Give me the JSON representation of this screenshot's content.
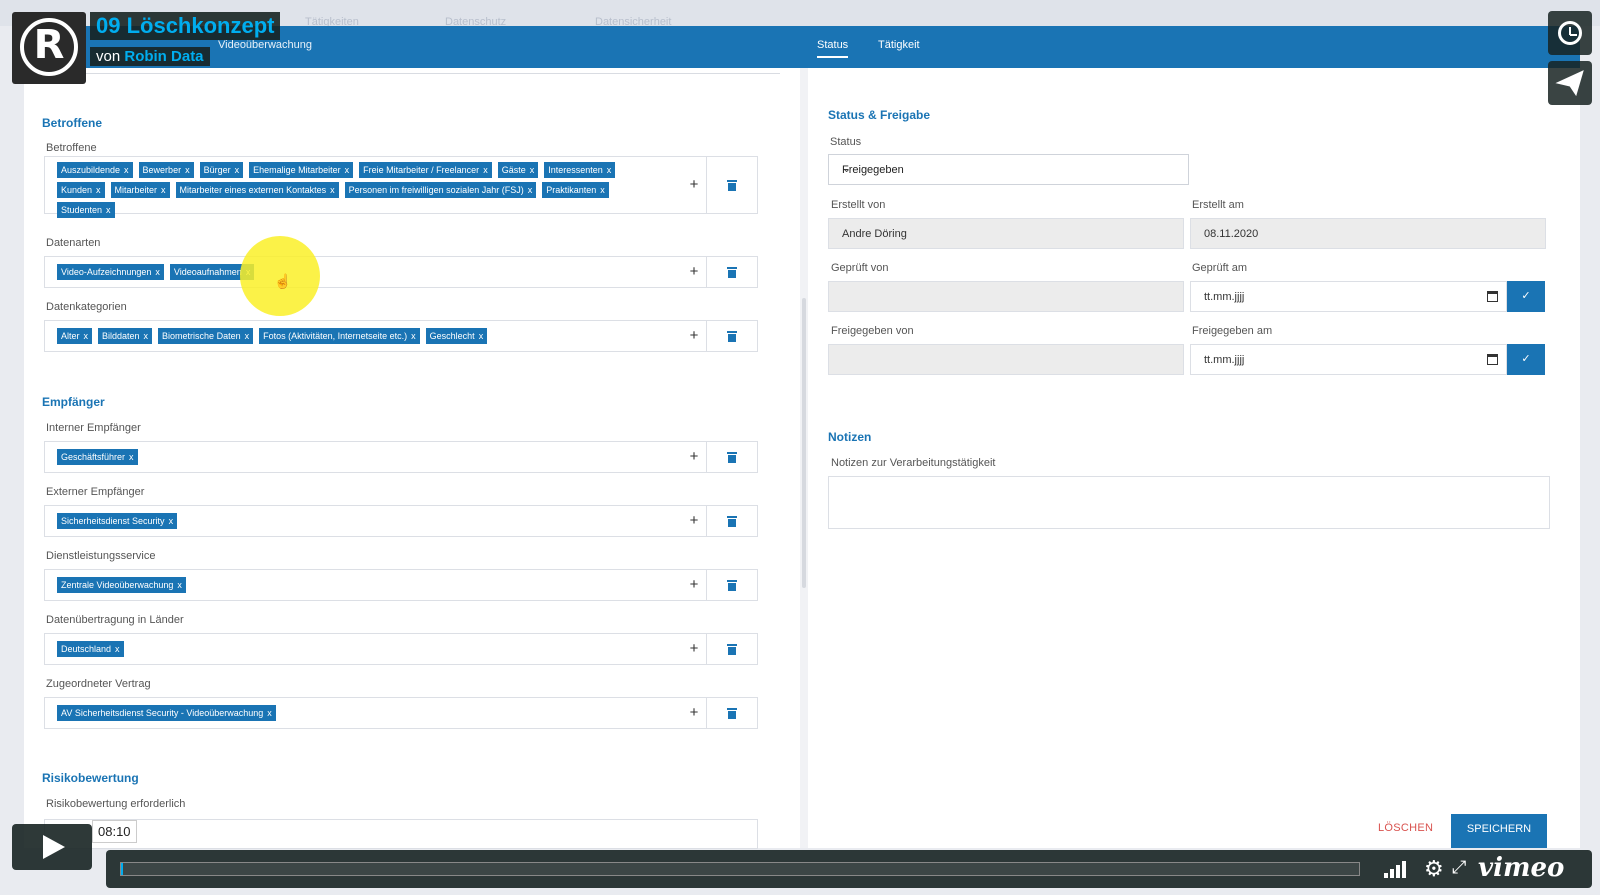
{
  "overlay": {
    "title": "09 Löschkonzept",
    "by_prefix": "von",
    "by_name": "Robin Data",
    "time": "08:10",
    "brand": "vimeo"
  },
  "top_nav_ghost": [
    "Tätigkeiten",
    "Datenschutz",
    "Datensicherheit"
  ],
  "header": {
    "breadcrumb": "Videoüberwachung",
    "tabs": [
      {
        "label": "Status",
        "active": true
      },
      {
        "label": "Tätigkeit",
        "active": false
      }
    ]
  },
  "left": {
    "betroffene": {
      "section": "Betroffene",
      "groups": [
        {
          "label": "Betroffene",
          "tags": [
            "Auszubildende",
            "Bewerber",
            "Bürger",
            "Ehemalige Mitarbeiter",
            "Freie Mitarbeiter / Freelancer",
            "Gäste",
            "Interessenten",
            "Kunden",
            "Mitarbeiter",
            "Mitarbeiter eines externen Kontaktes",
            "Personen im freiwilligen sozialen Jahr (FSJ)",
            "Praktikanten",
            "Studenten"
          ]
        },
        {
          "label": "Datenarten",
          "tags": [
            "Video-Aufzeichnungen",
            "Videoaufnahmen"
          ]
        },
        {
          "label": "Datenkategorien",
          "tags": [
            "Alter",
            "Bilddaten",
            "Biometrische Daten",
            "Fotos (Aktivitäten, Internetseite etc.)",
            "Geschlecht"
          ]
        }
      ]
    },
    "empfaenger": {
      "section": "Empfänger",
      "groups": [
        {
          "label": "Interner Empfänger",
          "tags": [
            "Geschäftsführer"
          ]
        },
        {
          "label": "Externer Empfänger",
          "tags": [
            "Sicherheitsdienst Security"
          ]
        },
        {
          "label": "Dienstleistungsservice",
          "tags": [
            "Zentrale Videoüberwachung"
          ]
        },
        {
          "label": "Datenübertragung in Länder",
          "tags": [
            "Deutschland"
          ]
        },
        {
          "label": "Zugeordneter Vertrag",
          "tags": [
            "AV Sicherheitsdienst Security - Videoüberwachung"
          ]
        }
      ]
    },
    "risiko": {
      "section": "Risikobewertung",
      "label": "Risikobewertung erforderlich"
    },
    "tag_remove": "x",
    "plus": "+"
  },
  "right": {
    "status_section": "Status & Freigabe",
    "status_label": "Status",
    "status_value": "Freigegeben",
    "erstellt_von_label": "Erstellt von",
    "erstellt_von_value": "Andre Döring",
    "erstellt_am_label": "Erstellt am",
    "erstellt_am_value": "08.11.2020",
    "geprueft_von_label": "Geprüft von",
    "geprueft_am_label": "Geprüft am",
    "geprueft_am_value": "tt.mm.jjjj",
    "freigegeben_von_label": "Freigegeben von",
    "freigegeben_am_label": "Freigegeben am",
    "freigegeben_am_value": "tt.mm.jjjj",
    "notizen_section": "Notizen",
    "notizen_label": "Notizen zur Verarbeitungstätigkeit",
    "delete_label": "LÖSCHEN",
    "save_label": "SPEICHERN",
    "check": "✓"
  },
  "colors": {
    "primary": "#1a74b4",
    "overlay_accent": "#00adef",
    "danger": "#d9534f",
    "highlight": "#faf028"
  },
  "icons": [
    "logo-icon",
    "clock-icon",
    "send-icon",
    "trash-icon",
    "plus-icon",
    "calendar-icon",
    "chevron-down-icon",
    "cursor-icon",
    "play-icon",
    "volume-icon",
    "gear-icon",
    "fullscreen-icon"
  ]
}
